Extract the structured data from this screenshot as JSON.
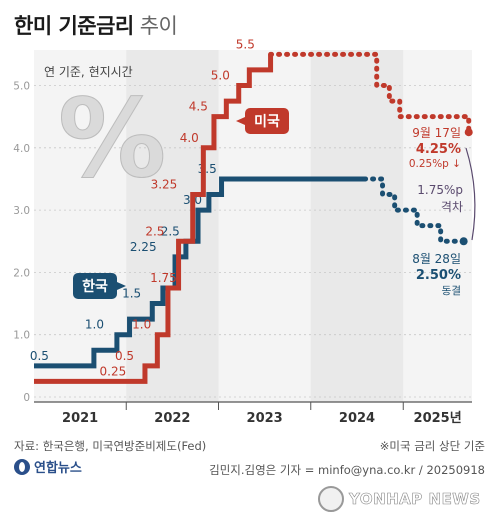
{
  "title": "한미 기준금리",
  "subtitle": "추이",
  "unit_note": "연 기준, 현지시간",
  "percent_symbol": "%",
  "footer": {
    "source": "자료: 한국은행, 미국연방준비제도(Fed)",
    "note": "※미국 금리 상단 기준",
    "credit": "김민지.김영은 기자 = minfo@yna.co.kr / 20250918",
    "brand": "연합뉴스",
    "watermark": "YONHAP NEWS"
  },
  "colors": {
    "korea": "#1b4f72",
    "us": "#c0392b",
    "gap": "#5a4a6e",
    "grid": "#c8c8c8",
    "year_band": "#e9e9e9"
  },
  "chart_data": {
    "type": "line",
    "step": true,
    "ylim": [
      0,
      5.5
    ],
    "yticks": [
      "0",
      "1.0",
      "2.0",
      "3.0",
      "4.0",
      "5.0"
    ],
    "grid": true,
    "years": [
      "2021",
      "2022",
      "2023",
      "2024",
      "2025년"
    ],
    "series": [
      {
        "name": "한국",
        "style": "solid-then-dotted",
        "points": [
          [
            "2021-01-01",
            0.5
          ],
          [
            "2021-08-26",
            0.75
          ],
          [
            "2021-11-25",
            1.0
          ],
          [
            "2022-01-14",
            1.25
          ],
          [
            "2022-04-14",
            1.5
          ],
          [
            "2022-05-26",
            1.75
          ],
          [
            "2022-07-13",
            2.25
          ],
          [
            "2022-08-25",
            2.5
          ],
          [
            "2022-10-12",
            3.0
          ],
          [
            "2022-11-24",
            3.25
          ],
          [
            "2023-01-13",
            3.5
          ],
          [
            "2024-10-11",
            3.25
          ],
          [
            "2024-11-28",
            3.0
          ],
          [
            "2025-02-25",
            2.75
          ],
          [
            "2025-05-29",
            2.5
          ],
          [
            "2025-08-28",
            2.5
          ]
        ],
        "labels": [
          {
            "date": "2021-03-01",
            "value": 0.5,
            "text": "0.5"
          },
          {
            "date": "2021-10-05",
            "value": 1.0,
            "text": "1.0"
          },
          {
            "date": "2022-03-01",
            "value": 1.5,
            "text": "1.5"
          },
          {
            "date": "2022-05-01",
            "value": 2.25,
            "text": "2.25"
          },
          {
            "date": "2022-08-01",
            "value": 2.5,
            "text": "2.5"
          },
          {
            "date": "2022-10-28",
            "value": 3.0,
            "text": "3.0"
          },
          {
            "date": "2022-12-25",
            "value": 3.5,
            "text": "3.5"
          }
        ],
        "callout": "한국",
        "end_date": "8월 28일",
        "end_value": "2.50%",
        "end_status": "동결"
      },
      {
        "name": "미국",
        "style": "solid-then-dotted",
        "points": [
          [
            "2021-01-01",
            0.25
          ],
          [
            "2022-03-16",
            0.5
          ],
          [
            "2022-05-04",
            1.0
          ],
          [
            "2022-06-15",
            1.75
          ],
          [
            "2022-07-27",
            2.5
          ],
          [
            "2022-09-21",
            3.25
          ],
          [
            "2022-11-02",
            4.0
          ],
          [
            "2022-12-14",
            4.5
          ],
          [
            "2023-02-01",
            4.75
          ],
          [
            "2023-03-22",
            5.0
          ],
          [
            "2023-05-03",
            5.25
          ],
          [
            "2023-07-26",
            5.5
          ],
          [
            "2024-09-18",
            5.0
          ],
          [
            "2024-11-07",
            4.75
          ],
          [
            "2024-12-18",
            4.5
          ],
          [
            "2025-09-17",
            4.25
          ]
        ],
        "labels": [
          {
            "date": "2022-01-01",
            "value": 0.25,
            "text": "0.25"
          },
          {
            "date": "2022-02-01",
            "value": 0.5,
            "text": "0.5"
          },
          {
            "date": "2022-04-10",
            "value": 1.0,
            "text": "1.0"
          },
          {
            "date": "2022-07-20",
            "value": 1.75,
            "text": "1.75"
          },
          {
            "date": "2022-06-01",
            "value": 2.5,
            "text": "2.5"
          },
          {
            "date": "2022-07-22",
            "value": 3.25,
            "text": "3.25"
          },
          {
            "date": "2022-10-15",
            "value": 4.0,
            "text": "4.0"
          },
          {
            "date": "2022-11-20",
            "value": 4.5,
            "text": "4.5"
          },
          {
            "date": "2023-02-15",
            "value": 5.0,
            "text": "5.0"
          },
          {
            "date": "2023-05-25",
            "value": 5.5,
            "text": "5.5"
          }
        ],
        "callout": "미국",
        "end_date": "9월 17일",
        "end_value": "4.25%",
        "end_change": "0.25%p ↓"
      }
    ],
    "gap": {
      "value": "1.75%p",
      "label": "격차"
    }
  }
}
